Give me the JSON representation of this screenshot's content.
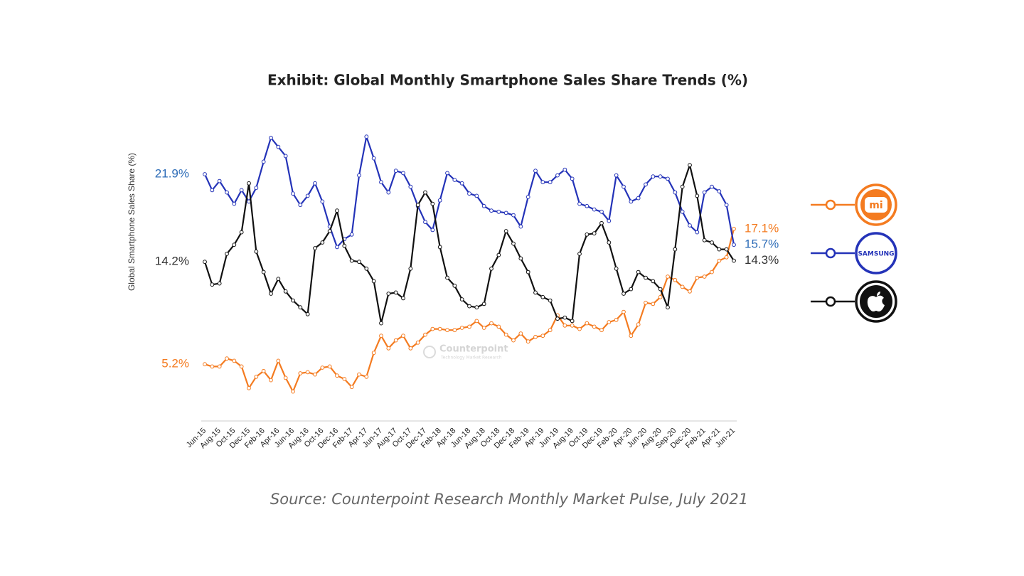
{
  "chart_data": {
    "type": "line",
    "title": "Exhibit: Global Monthly Smartphone Sales Share Trends (%)",
    "y_label": "Global Smartphone Sales Share (%)",
    "source": "Source: Counterpoint Research Monthly Market Pulse, July 2021",
    "watermark": "Counterpoint",
    "watermark_sub": "Technology Market Research",
    "ylim": [
      0,
      26
    ],
    "grid": false,
    "legend": "right",
    "categories": [
      "Jun-15",
      null,
      "Aug-15",
      null,
      "Oct-15",
      null,
      "Dec-15",
      null,
      "Feb-16",
      null,
      "Apr-16",
      null,
      "Jun-16",
      null,
      "Aug-16",
      null,
      "Oct-16",
      null,
      "Dec-16",
      null,
      "Feb-17",
      null,
      "Apr-17",
      null,
      "Jun-17",
      null,
      "Aug-17",
      null,
      "Oct-17",
      null,
      "Dec-17",
      null,
      "Feb-18",
      null,
      "Apr-18",
      null,
      "Jun-18",
      null,
      "Aug-18",
      null,
      "Oct-18",
      null,
      "Dec-18",
      null,
      "Feb-19",
      null,
      "Apr-19",
      null,
      "Jun-19",
      null,
      "Aug-19",
      null,
      "Oct-19",
      null,
      "Dec-19",
      null,
      "Feb-20",
      null,
      "Apr-20",
      null,
      "Jun-20",
      null,
      "Aug-20",
      null,
      "Sep-20",
      null,
      "Dec-20",
      null,
      "Feb-21",
      null,
      "Apr-21",
      null,
      "Jun-21"
    ],
    "series": [
      {
        "name": "mi",
        "color": "#f47b20",
        "label_color": "#f47b20",
        "values": [
          5.2,
          5.0,
          5.0,
          5.7,
          5.5,
          5.0,
          3.1,
          4.1,
          4.6,
          3.8,
          5.5,
          4.0,
          2.8,
          4.4,
          4.5,
          4.3,
          4.9,
          5.0,
          4.2,
          3.9,
          3.2,
          4.3,
          4.1,
          6.2,
          7.7,
          6.6,
          7.3,
          7.7,
          6.6,
          7.1,
          7.8,
          8.3,
          8.3,
          8.2,
          8.2,
          8.4,
          8.5,
          9.0,
          8.4,
          8.8,
          8.5,
          7.8,
          7.3,
          7.9,
          7.2,
          7.6,
          7.7,
          8.2,
          9.5,
          8.6,
          8.6,
          8.3,
          8.8,
          8.5,
          8.2,
          8.9,
          9.1,
          9.8,
          7.7,
          8.7,
          10.6,
          10.5,
          11.1,
          12.9,
          12.6,
          12.0,
          11.6,
          12.8,
          12.9,
          13.3,
          14.3,
          14.6,
          17.1
        ],
        "value_labels": [
          "5.2%",
          null,
          null,
          null,
          null,
          null,
          null,
          null,
          null,
          null,
          null,
          null,
          null,
          null,
          null,
          null,
          null,
          null,
          null,
          null,
          null,
          null,
          null,
          null,
          null,
          null,
          null,
          null,
          null,
          null,
          null,
          null,
          null,
          null,
          null,
          null,
          null,
          null,
          null,
          null,
          null,
          null,
          null,
          null,
          null,
          null,
          null,
          null,
          null,
          null,
          null,
          null,
          null,
          null,
          null,
          null,
          null,
          null,
          null,
          null,
          null,
          null,
          null,
          null,
          null,
          null,
          null,
          null,
          null,
          null,
          null,
          null,
          "17.1%"
        ]
      },
      {
        "name": "SAMSUNG",
        "color": "#2433b8",
        "label_color": "#2e6db8",
        "values": [
          21.9,
          20.5,
          21.3,
          20.3,
          19.3,
          20.5,
          19.5,
          20.7,
          23.0,
          25.1,
          24.3,
          23.5,
          20.2,
          19.2,
          20.0,
          21.1,
          19.5,
          17.3,
          15.5,
          16.2,
          16.6,
          21.8,
          25.2,
          23.3,
          21.2,
          20.3,
          22.2,
          22.0,
          20.8,
          19.1,
          17.7,
          17.0,
          19.6,
          22.0,
          21.4,
          21.1,
          20.2,
          20.0,
          19.1,
          18.7,
          18.6,
          18.5,
          18.3,
          17.3,
          19.9,
          22.2,
          21.2,
          21.2,
          21.8,
          22.3,
          21.5,
          19.3,
          19.1,
          18.8,
          18.6,
          17.8,
          21.8,
          20.8,
          19.5,
          19.8,
          21.0,
          21.7,
          21.7,
          21.5,
          20.3,
          18.6,
          17.4,
          16.8,
          20.3,
          20.8,
          20.4,
          19.2,
          15.7
        ],
        "value_labels": [
          "21.9%",
          null,
          null,
          null,
          null,
          null,
          null,
          null,
          null,
          null,
          null,
          null,
          null,
          null,
          null,
          null,
          null,
          null,
          null,
          null,
          null,
          null,
          null,
          null,
          null,
          null,
          null,
          null,
          null,
          null,
          null,
          null,
          null,
          null,
          null,
          null,
          null,
          null,
          null,
          null,
          null,
          null,
          null,
          null,
          null,
          null,
          null,
          null,
          null,
          null,
          null,
          null,
          null,
          null,
          null,
          null,
          null,
          null,
          null,
          null,
          null,
          null,
          null,
          null,
          null,
          null,
          null,
          null,
          null,
          null,
          null,
          null,
          "15.7%"
        ]
      },
      {
        "name": null,
        "color": "#111111",
        "label_color": "#333333",
        "values": [
          14.2,
          12.2,
          12.3,
          14.9,
          15.7,
          16.8,
          21.1,
          15.1,
          13.3,
          11.4,
          12.7,
          11.6,
          10.8,
          10.2,
          9.6,
          15.4,
          15.9,
          16.9,
          18.7,
          15.6,
          14.3,
          14.2,
          13.6,
          12.5,
          8.8,
          11.4,
          11.5,
          11.0,
          13.6,
          19.2,
          20.3,
          19.3,
          15.5,
          12.8,
          12.1,
          10.9,
          10.3,
          10.2,
          10.5,
          13.6,
          14.8,
          16.9,
          15.8,
          14.5,
          13.3,
          11.5,
          11.1,
          10.8,
          9.2,
          9.3,
          9.0,
          14.9,
          16.6,
          16.7,
          17.6,
          15.9,
          13.6,
          11.4,
          11.8,
          13.3,
          12.8,
          12.5,
          11.8,
          10.2,
          15.3,
          20.8,
          22.7,
          20.0,
          16.1,
          15.9,
          15.3,
          15.3,
          14.3
        ],
        "value_labels": [
          "14.2%",
          null,
          null,
          null,
          null,
          null,
          null,
          null,
          null,
          null,
          null,
          null,
          null,
          null,
          null,
          null,
          null,
          null,
          null,
          null,
          null,
          null,
          null,
          null,
          null,
          null,
          null,
          null,
          null,
          null,
          null,
          null,
          null,
          null,
          null,
          null,
          null,
          null,
          null,
          null,
          null,
          null,
          null,
          null,
          null,
          null,
          null,
          null,
          null,
          null,
          null,
          null,
          null,
          null,
          null,
          null,
          null,
          null,
          null,
          null,
          null,
          null,
          null,
          null,
          null,
          null,
          null,
          null,
          null,
          null,
          null,
          null,
          "14.3%"
        ]
      }
    ]
  }
}
